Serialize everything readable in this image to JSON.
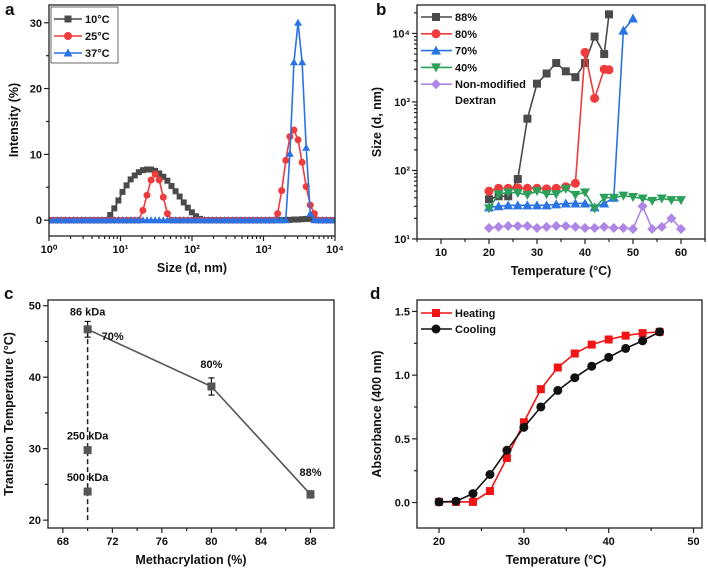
{
  "chart_data": [
    {
      "panel": "a",
      "type": "line",
      "xlabel": "Size (d, nm)",
      "ylabel": "Intensity (%)",
      "xscale": "log",
      "xlim": [
        1,
        10000
      ],
      "ylim": [
        -2.4,
        32.7
      ],
      "xticks": [
        1,
        10,
        100,
        1000,
        10000
      ],
      "xtick_labels": [
        "10⁰",
        "10¹",
        "10²",
        "10³",
        "10⁴"
      ],
      "yticks": [
        0,
        10,
        20,
        30
      ],
      "ytick_labels": [
        "0",
        "10",
        "20",
        "30"
      ],
      "legend_position": "top-left",
      "x_log10_start": 0,
      "x_log10_step": 0.0571,
      "series": [
        {
          "name": "10°C",
          "color": "#4a4a4a",
          "marker": "square",
          "values": [
            0,
            0,
            0,
            0,
            0,
            0,
            0,
            0,
            0,
            0,
            0,
            0,
            0,
            0,
            0,
            0.8,
            1.8,
            3.0,
            4.3,
            5.3,
            6.2,
            6.8,
            7.3,
            7.6,
            7.7,
            7.7,
            7.5,
            7.1,
            6.6,
            6.0,
            5.2,
            4.4,
            3.6,
            2.7,
            1.9,
            1.2,
            0.6,
            0.2,
            0,
            0,
            0,
            0,
            0,
            0,
            0,
            0,
            0,
            0,
            0,
            0,
            0,
            0,
            0,
            0,
            0,
            0,
            0,
            0,
            0.05,
            0.05,
            0.1,
            0.1,
            0.15,
            0.2,
            0.2,
            0.1,
            0,
            0,
            0,
            0,
            0
          ]
        },
        {
          "name": "25°C",
          "color": "#ef3b3b",
          "marker": "circle",
          "values": [
            0,
            0,
            0,
            0,
            0,
            0,
            0,
            0,
            0,
            0,
            0,
            0,
            0,
            0,
            0,
            0,
            0,
            0,
            0,
            0,
            0,
            0,
            0,
            1.5,
            3.8,
            6.1,
            7.0,
            6.1,
            3.5,
            1.0,
            0,
            0,
            0,
            0,
            0,
            0,
            0,
            0,
            0,
            0,
            0,
            0,
            0,
            0,
            0,
            0,
            0,
            0,
            0,
            0,
            0,
            0,
            0,
            0,
            0,
            0,
            1.0,
            4.5,
            9.1,
            12.7,
            13.7,
            12.2,
            8.8,
            5.1,
            2.3,
            1.0,
            0,
            0,
            0,
            0,
            0
          ]
        },
        {
          "name": "37°C",
          "color": "#2a73e3",
          "marker": "triangle-up",
          "values": [
            0,
            0,
            0,
            0,
            0,
            0,
            0,
            0,
            0,
            0,
            0,
            0,
            0,
            0,
            0,
            0,
            0,
            0,
            0,
            0,
            0,
            0,
            0,
            0,
            0,
            0,
            0,
            0,
            0,
            0,
            0,
            0,
            0,
            0,
            0,
            0,
            0,
            0,
            0,
            0,
            0,
            0,
            0,
            0,
            0,
            0,
            0,
            0,
            0,
            0,
            0,
            0,
            0,
            0,
            0,
            0,
            0,
            0,
            0,
            10.1,
            24.0,
            30.0,
            24.0,
            11.0,
            1.0,
            0,
            0,
            0,
            0,
            0,
            0
          ]
        }
      ]
    },
    {
      "panel": "b",
      "type": "line",
      "xlabel": "Temperature (°C)",
      "ylabel": "Size (d, nm)",
      "yscale": "log",
      "xlim": [
        5,
        65
      ],
      "ylim": [
        10,
        26000
      ],
      "xticks": [
        10,
        20,
        30,
        40,
        50,
        60
      ],
      "xtick_labels": [
        "10",
        "20",
        "30",
        "40",
        "50",
        "60"
      ],
      "yticks": [
        10,
        100,
        1000,
        10000
      ],
      "ytick_labels": [
        "10¹",
        "10²",
        "10³",
        "10⁴"
      ],
      "legend_position": "top-left",
      "series": [
        {
          "name": "88%",
          "color": "#4a4a4a",
          "marker": "square",
          "x": [
            20,
            22,
            24,
            26,
            28,
            30,
            32,
            34,
            36,
            38,
            40,
            42,
            44,
            45
          ],
          "values": [
            38,
            42,
            42,
            75,
            570,
            1850,
            2600,
            3700,
            2800,
            2300,
            3700,
            9000,
            5000,
            19000
          ]
        },
        {
          "name": "80%",
          "color": "#ef3b3b",
          "marker": "circle",
          "x": [
            20,
            22,
            24,
            26,
            28,
            30,
            32,
            34,
            36,
            38,
            40,
            42,
            44,
            45
          ],
          "values": [
            50,
            55,
            55,
            56,
            55,
            55,
            54,
            55,
            58,
            65,
            5300,
            1130,
            3000,
            2950
          ]
        },
        {
          "name": "70%",
          "color": "#2a73e3",
          "marker": "triangle-up",
          "x": [
            20,
            22,
            24,
            26,
            28,
            30,
            32,
            34,
            36,
            38,
            40,
            42,
            44,
            46,
            48,
            50
          ],
          "values": [
            29,
            30,
            31,
            31,
            31,
            31,
            31,
            32,
            33,
            33,
            33,
            29,
            33,
            40,
            11000,
            16500
          ]
        },
        {
          "name": "40%",
          "color": "#2aa05a",
          "marker": "triangle-down",
          "x": [
            20,
            22,
            24,
            26,
            28,
            30,
            32,
            34,
            36,
            38,
            40,
            42,
            44,
            46,
            48,
            50,
            52,
            54,
            56,
            58,
            60
          ],
          "values": [
            28,
            45,
            48,
            47,
            44,
            50,
            45,
            45,
            54,
            44,
            48,
            28,
            40,
            40,
            43,
            41,
            39,
            36,
            39,
            37,
            37
          ]
        },
        {
          "name": "Non-modified",
          "name2": "Dextran",
          "color": "#ad86e6",
          "marker": "diamond",
          "x": [
            20,
            22,
            24,
            26,
            28,
            30,
            32,
            34,
            36,
            38,
            40,
            42,
            44,
            46,
            48,
            50,
            52,
            54,
            56,
            58,
            60
          ],
          "values": [
            14.5,
            15,
            15.5,
            15.5,
            15.5,
            14.5,
            15,
            15.5,
            15.5,
            15,
            14.5,
            14.5,
            15,
            14.5,
            14.5,
            14,
            30,
            14,
            15,
            20,
            14
          ]
        }
      ]
    },
    {
      "panel": "c",
      "type": "scatter",
      "xlabel": "Methacrylation (%)",
      "ylabel": "Transition Temperature (°C)",
      "xlim": [
        66.8,
        89.9
      ],
      "ylim": [
        18.9,
        50.8
      ],
      "xticks": [
        68,
        72,
        76,
        80,
        84,
        88
      ],
      "xtick_labels": [
        "68",
        "72",
        "76",
        "80",
        "84",
        "88"
      ],
      "yticks": [
        20,
        30,
        40,
        50
      ],
      "ytick_labels": [
        "20",
        "30",
        "40",
        "50"
      ],
      "series": [
        {
          "name": "86 kDa",
          "color": "#555555",
          "marker": "square",
          "connected": true,
          "x": [
            70,
            80,
            88
          ],
          "values": [
            46.7,
            38.7,
            23.6
          ],
          "errors": [
            1.1,
            1.2,
            0.5
          ],
          "point_labels": [
            "70%",
            "80%",
            "88%"
          ]
        },
        {
          "name": "250 kDa",
          "color": "#555555",
          "marker": "square",
          "connected": false,
          "x": [
            70
          ],
          "values": [
            29.8
          ]
        },
        {
          "name": "500 kDa",
          "color": "#555555",
          "marker": "square",
          "connected": false,
          "x": [
            70
          ],
          "values": [
            24.0
          ]
        }
      ],
      "dashed_line": {
        "x": 70,
        "y": [
          20,
          47
        ]
      }
    },
    {
      "panel": "d",
      "type": "line",
      "xlabel": "Temperature (°C)",
      "ylabel": "Absorbance (400 nm)",
      "xlim": [
        17.4,
        51.0
      ],
      "ylim": [
        -0.2,
        1.59
      ],
      "xticks": [
        20,
        30,
        40,
        50
      ],
      "xtick_labels": [
        "20",
        "30",
        "40",
        "50"
      ],
      "yticks": [
        0,
        0.5,
        1.0,
        1.5
      ],
      "ytick_labels": [
        "0.0",
        "0.5",
        "1.0",
        "1.5"
      ],
      "legend_position": "top-left",
      "series": [
        {
          "name": "Heating",
          "color": "#f01414",
          "marker": "square",
          "x": [
            20,
            22,
            24,
            26,
            28,
            30,
            32,
            34,
            36,
            38,
            40,
            42,
            44,
            46
          ],
          "values": [
            0.005,
            0.005,
            0.005,
            0.09,
            0.35,
            0.63,
            0.89,
            1.06,
            1.17,
            1.24,
            1.28,
            1.31,
            1.33,
            1.34
          ]
        },
        {
          "name": "Cooling",
          "color": "#111111",
          "marker": "circle",
          "x": [
            20,
            22,
            24,
            26,
            28,
            30,
            32,
            34,
            36,
            38,
            40,
            42,
            44,
            46
          ],
          "values": [
            0.005,
            0.01,
            0.07,
            0.22,
            0.41,
            0.59,
            0.75,
            0.88,
            0.98,
            1.07,
            1.14,
            1.21,
            1.27,
            1.34
          ]
        }
      ]
    }
  ],
  "panel_letters": [
    "a",
    "b",
    "c",
    "d"
  ]
}
